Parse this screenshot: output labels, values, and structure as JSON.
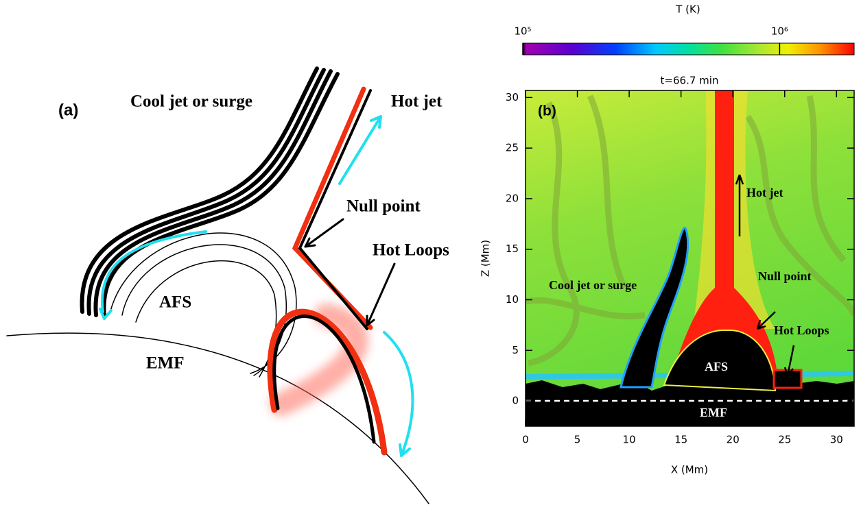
{
  "panel_a": {
    "label": "(a)",
    "cool_jet": "Cool jet or surge",
    "hot_jet": "Hot jet",
    "null_point": "Null point",
    "hot_loops": "Hot Loops",
    "afs": "AFS",
    "emf": "EMF"
  },
  "panel_b": {
    "label": "(b)",
    "title": "t=66.7 min",
    "xlabel": "X (Mm)",
    "ylabel": "Z (Mm)",
    "xlim": [
      0,
      31.7
    ],
    "ylim": [
      -2.5,
      30.7
    ],
    "xticks": [
      0,
      5,
      10,
      15,
      20,
      25,
      30
    ],
    "yticks": [
      0,
      5,
      10,
      15,
      20,
      25,
      30
    ],
    "hot_jet": "Hot jet",
    "cool_jet": "Cool jet or surge",
    "null_point": "Null point",
    "hot_loops": "Hot Loops",
    "afs": "AFS",
    "emf": "EMF"
  },
  "colorbar": {
    "title": "T (K)",
    "log_scale": true,
    "lim": [
      100000,
      1950000
    ],
    "ticks": [
      {
        "value": 100000,
        "label": "10⁵"
      },
      {
        "value": 1000000,
        "label": "10⁶"
      }
    ]
  }
}
